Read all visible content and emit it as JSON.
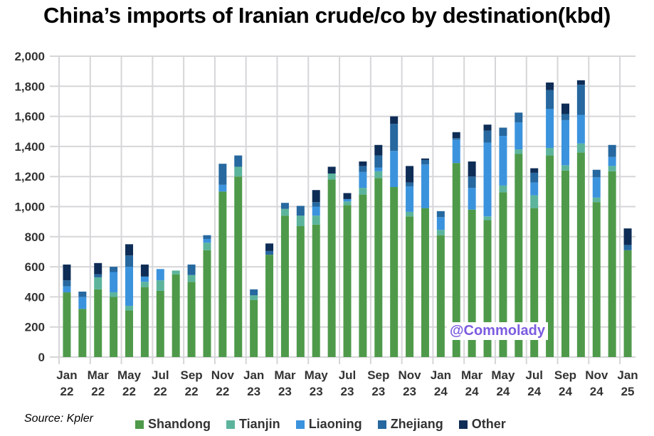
{
  "chart_data": {
    "type": "bar",
    "stacked": true,
    "title": "China’s imports of Iranian crude/co by destination(kbd)",
    "xlabel": "",
    "ylabel": "",
    "ylim": [
      0,
      2000
    ],
    "yticks": [
      "0",
      "200",
      "400",
      "600",
      "800",
      "1,000",
      "1,200",
      "1,400",
      "1,600",
      "1,800",
      "2,000"
    ],
    "ytick_values": [
      0,
      200,
      400,
      600,
      800,
      1000,
      1200,
      1400,
      1600,
      1800,
      2000
    ],
    "grid": true,
    "legend_position": "bottom",
    "categories": [
      "Jan 22",
      "Feb 22",
      "Mar 22",
      "Apr 22",
      "May 22",
      "Jun 22",
      "Jul 22",
      "Aug 22",
      "Sep 22",
      "Oct 22",
      "Nov 22",
      "Dec 22",
      "Jan 23",
      "Feb 23",
      "Mar 23",
      "Apr 23",
      "May 23",
      "Jun 23",
      "Jul 23",
      "Aug 23",
      "Sep 23",
      "Oct 23",
      "Nov 23",
      "Dec 23",
      "Jan 24",
      "Feb 24",
      "Mar 24",
      "Apr 24",
      "May 24",
      "Jun 24",
      "Jul 24",
      "Aug 24",
      "Sep 24",
      "Oct 24",
      "Nov 24",
      "Dec 24",
      "Jan 25"
    ],
    "xtick_labels": [
      [
        "Jan",
        "22"
      ],
      [
        "Mar",
        "22"
      ],
      [
        "May",
        "22"
      ],
      [
        "Jul",
        "22"
      ],
      [
        "Sep",
        "22"
      ],
      [
        "Nov",
        "22"
      ],
      [
        "Jan",
        "23"
      ],
      [
        "Mar",
        "23"
      ],
      [
        "May",
        "23"
      ],
      [
        "Jul",
        "23"
      ],
      [
        "Sep",
        "23"
      ],
      [
        "Nov",
        "23"
      ],
      [
        "Jan",
        "24"
      ],
      [
        "Mar",
        "24"
      ],
      [
        "May",
        "24"
      ],
      [
        "Jul",
        "24"
      ],
      [
        "Sep",
        "24"
      ],
      [
        "Nov",
        "24"
      ],
      [
        "Jan",
        "25"
      ]
    ],
    "series": [
      {
        "name": "Shandong",
        "color": "#4e9a4a",
        "values": [
          430,
          320,
          450,
          400,
          310,
          465,
          440,
          550,
          500,
          710,
          1100,
          1200,
          380,
          680,
          940,
          870,
          880,
          1180,
          1010,
          1080,
          1190,
          1130,
          935,
          990,
          810,
          1290,
          980,
          910,
          1095,
          1350,
          990,
          1340,
          1240,
          1360,
          1030,
          1235,
          710
        ]
      },
      {
        "name": "Tianjin",
        "color": "#5cb49c",
        "values": [
          0,
          0,
          80,
          30,
          30,
          35,
          70,
          25,
          45,
          50,
          0,
          65,
          30,
          0,
          45,
          70,
          60,
          40,
          25,
          45,
          45,
          0,
          30,
          0,
          35,
          0,
          0,
          25,
          45,
          30,
          85,
          50,
          35,
          60,
          30,
          35,
          0
        ]
      },
      {
        "name": "Liaoning",
        "color": "#3b93dd",
        "values": [
          40,
          80,
          0,
          135,
          260,
          35,
          75,
          0,
          0,
          25,
          45,
          0,
          0,
          0,
          0,
          0,
          60,
          0,
          15,
          105,
          25,
          240,
          170,
          290,
          85,
          155,
          145,
          490,
          330,
          180,
          85,
          260,
          300,
          190,
          135,
          60,
          0
        ]
      },
      {
        "name": "Zhejiang",
        "color": "#26689f",
        "values": [
          40,
          35,
          20,
          35,
          75,
          0,
          0,
          0,
          70,
          25,
          140,
          75,
          40,
          25,
          40,
          65,
          30,
          0,
          0,
          40,
          80,
          180,
          25,
          30,
          40,
          10,
          75,
          80,
          55,
          65,
          65,
          125,
          40,
          200,
          50,
          80,
          35
        ]
      },
      {
        "name": "Other",
        "color": "#0e2d56",
        "values": [
          105,
          0,
          75,
          0,
          75,
          80,
          0,
          0,
          0,
          0,
          0,
          0,
          0,
          50,
          0,
          0,
          80,
          45,
          40,
          30,
          70,
          50,
          110,
          10,
          0,
          40,
          100,
          40,
          0,
          0,
          30,
          50,
          70,
          30,
          0,
          0,
          110
        ]
      }
    ],
    "source": "Source: Kpler",
    "watermark": "@Commolady"
  }
}
